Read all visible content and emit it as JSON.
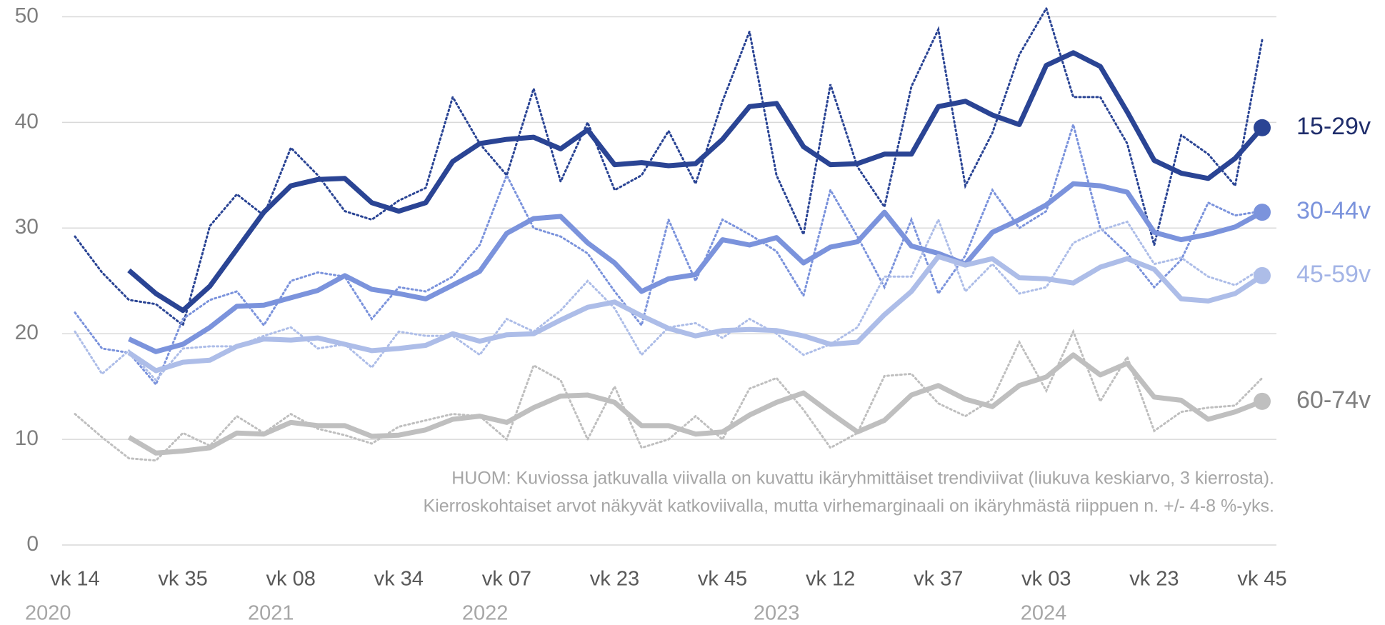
{
  "chart_data": {
    "type": "line",
    "categories": [
      "vk 14",
      null,
      null,
      null,
      "vk 35",
      null,
      null,
      null,
      "vk 08",
      null,
      null,
      null,
      "vk 34",
      null,
      null,
      null,
      "vk 07",
      null,
      null,
      null,
      "vk 23",
      null,
      null,
      null,
      "vk 45",
      null,
      null,
      null,
      "vk 12",
      null,
      null,
      null,
      "vk 37",
      null,
      null,
      null,
      "vk 03",
      null,
      null,
      null,
      "vk 23",
      null,
      null,
      null,
      "vk 45"
    ],
    "year_labels": [
      "2020",
      "2021",
      "2022",
      "2023",
      "2024"
    ],
    "ylim": [
      0,
      50
    ],
    "yticks": [
      0,
      10,
      20,
      30,
      40,
      50
    ],
    "grid": true,
    "annotation": [
      "HUOM: Kuviossa jatkuvalla viivalla on kuvattu ikäryhmittäiset trendiviivat (liukuva keskiarvo, 3 kierrosta).",
      "Kierroskohtaiset arvot näkyvät katkoviivalla, mutta virhemarginaali on ikäryhmästä riippuen n. +/- 4-8 %-yks."
    ],
    "series": [
      {
        "name": "15-29v",
        "color": "#2a4494",
        "label_color": "#1f2d6b",
        "values": [
          null,
          null,
          26,
          23.8,
          22.2,
          24.5,
          28,
          31.5,
          34,
          34.6,
          34.7,
          32.4,
          31.6,
          32.4,
          36.3,
          38,
          38.4,
          38.6,
          37.5,
          39.3,
          36,
          36.2,
          35.9,
          36.1,
          38.4,
          41.5,
          41.8,
          37.7,
          36,
          36.1,
          37,
          37,
          41.5,
          42,
          40.7,
          39.8,
          45.4,
          46.6,
          45.3,
          41,
          36.4,
          35.2,
          34.7,
          36.6,
          39.5
        ],
        "round_values": [
          29.2,
          25.8,
          23.2,
          22.8,
          20.8,
          30.2,
          33.2,
          31.2,
          37.6,
          35,
          31.6,
          30.8,
          32.6,
          33.8,
          42.4,
          38,
          35,
          43.2,
          34.4,
          40,
          33.6,
          35,
          39.2,
          34.2,
          42,
          48.6,
          35,
          29.4,
          43.6,
          35.8,
          32,
          43.4,
          48.8,
          34,
          39,
          46.4,
          50.8,
          42.4,
          42.4,
          38,
          28.4,
          38.8,
          37,
          34,
          47.8
        ]
      },
      {
        "name": "30-44v",
        "color": "#7b93dc",
        "label_color": "#7b93dc",
        "values": [
          null,
          null,
          19.5,
          18.3,
          19,
          20.6,
          22.6,
          22.7,
          23.4,
          24.1,
          25.5,
          24.2,
          23.8,
          23.3,
          24.6,
          25.9,
          29.5,
          30.9,
          31.1,
          28.6,
          26.7,
          24,
          25.2,
          25.6,
          28.9,
          28.4,
          29.1,
          26.7,
          28.2,
          28.7,
          31.5,
          28.3,
          27.6,
          26.6,
          29.6,
          30.8,
          32.2,
          34.2,
          34,
          33.4,
          29.6,
          28.9,
          29.4,
          30.1,
          31.5
        ],
        "round_values": [
          22,
          18.6,
          18.2,
          15.2,
          21.4,
          23.2,
          24,
          20.8,
          25,
          25.8,
          25.4,
          21.4,
          24.4,
          24,
          25.4,
          28.4,
          35,
          30,
          29.2,
          27.6,
          24,
          20.8,
          30.8,
          25,
          30.8,
          29.4,
          27.8,
          23.6,
          33.6,
          29.2,
          24.4,
          30.8,
          23.8,
          27.4,
          33.6,
          30,
          31.6,
          39.8,
          30,
          27.6,
          24.4,
          27,
          32.4,
          31.2,
          31.6
        ]
      },
      {
        "name": "45-59v",
        "color": "#adbde8",
        "label_color": "#a3b4e6",
        "values": [
          null,
          null,
          18.2,
          16.5,
          17.3,
          17.5,
          18.8,
          19.5,
          19.4,
          19.6,
          19,
          18.4,
          18.6,
          18.9,
          20,
          19.3,
          19.9,
          20,
          21.3,
          22.5,
          23,
          21.7,
          20.5,
          19.8,
          20.3,
          20.4,
          20.3,
          19.8,
          19,
          19.2,
          21.8,
          24,
          27.3,
          26.5,
          27.1,
          25.3,
          25.2,
          24.8,
          26.3,
          27.1,
          26.1,
          23.3,
          23.1,
          23.8,
          25.5
        ],
        "round_values": [
          20.2,
          16.2,
          18.4,
          15.6,
          18.6,
          18.8,
          18.8,
          19.8,
          20.6,
          18.6,
          19,
          16.8,
          20.2,
          19.8,
          19.8,
          18,
          21.4,
          20.2,
          22.2,
          25,
          22.4,
          18,
          20.6,
          21,
          19.6,
          21.4,
          20,
          18,
          19,
          20.6,
          25.4,
          25.4,
          30.8,
          24,
          26.6,
          23.8,
          24.4,
          28.6,
          29.8,
          30.6,
          26.6,
          27.2,
          25.4,
          24.6,
          26.2
        ]
      },
      {
        "name": "60-74v",
        "color": "#bfbfbf",
        "label_color": "#7f7f7f",
        "values": [
          null,
          null,
          10.2,
          8.7,
          8.9,
          9.2,
          10.6,
          10.5,
          11.6,
          11.3,
          11.3,
          10.3,
          10.4,
          10.9,
          11.9,
          12.2,
          11.6,
          13,
          14.1,
          14.2,
          13.5,
          11.3,
          11.3,
          10.5,
          10.7,
          12.3,
          13.5,
          14.4,
          12.5,
          10.7,
          11.8,
          14.2,
          15.1,
          13.8,
          13.1,
          15.1,
          15.9,
          18,
          16.1,
          17.2,
          14,
          13.7,
          11.9,
          12.6,
          13.6
        ],
        "round_values": [
          12.4,
          10.2,
          8.2,
          8,
          10.6,
          9.4,
          12.2,
          10.6,
          12.4,
          11,
          10.4,
          9.6,
          11.2,
          11.8,
          12.4,
          12.2,
          10,
          17,
          15.6,
          10,
          15,
          9.2,
          10,
          12.2,
          10,
          14.8,
          15.8,
          12.8,
          9.2,
          10.6,
          16,
          16.2,
          13.4,
          12.2,
          13.8,
          19.2,
          14.6,
          20.2,
          13.6,
          17.8,
          10.8,
          12.6,
          13,
          13.2,
          15.8
        ]
      }
    ]
  }
}
